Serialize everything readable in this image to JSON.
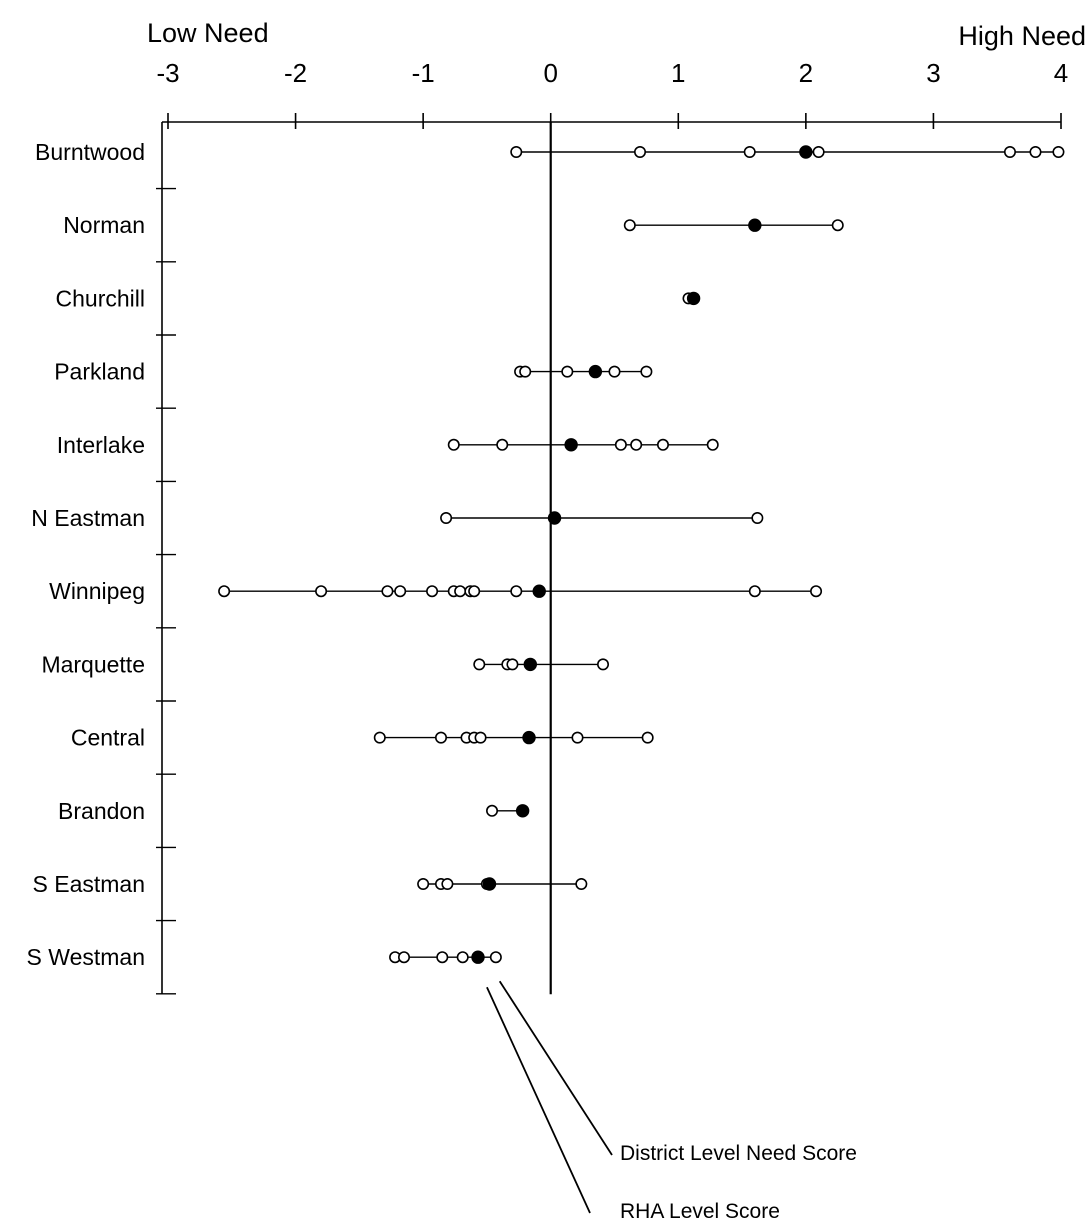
{
  "chart_data": {
    "type": "scatter",
    "x_label_left": "Low Need",
    "x_label_right": "High Need",
    "xlim": [
      -3,
      4
    ],
    "x_ticks": [
      "-3",
      "-2",
      "-1",
      "0",
      "1",
      "2",
      "3",
      "4"
    ],
    "grid": false,
    "regions": [
      {
        "name": "Burntwood",
        "rha_score": 2.0,
        "district_scores": [
          -0.27,
          0.7,
          1.56,
          2.1,
          3.6,
          3.8,
          3.98
        ]
      },
      {
        "name": "Norman",
        "rha_score": 1.6,
        "district_scores": [
          0.62,
          2.25
        ]
      },
      {
        "name": "Churchill",
        "rha_score": 1.12,
        "district_scores": [
          1.08
        ]
      },
      {
        "name": "Parkland",
        "rha_score": 0.35,
        "district_scores": [
          -0.24,
          -0.2,
          0.13,
          0.5,
          0.75
        ]
      },
      {
        "name": "Interlake",
        "rha_score": 0.16,
        "district_scores": [
          -0.76,
          -0.38,
          0.55,
          0.67,
          0.88,
          1.27
        ]
      },
      {
        "name": "N Eastman",
        "rha_score": 0.03,
        "district_scores": [
          -0.82,
          1.62
        ]
      },
      {
        "name": "Winnipeg",
        "rha_score": -0.09,
        "district_scores": [
          -2.56,
          -1.8,
          -1.28,
          -1.18,
          -0.93,
          -0.76,
          -0.71,
          -0.63,
          -0.6,
          -0.27,
          1.6,
          2.08
        ]
      },
      {
        "name": "Marquette",
        "rha_score": -0.16,
        "district_scores": [
          -0.56,
          -0.34,
          -0.3,
          0.41
        ]
      },
      {
        "name": "Central",
        "rha_score": -0.17,
        "district_scores": [
          -1.34,
          -0.86,
          -0.66,
          -0.6,
          -0.55,
          0.21,
          0.76
        ]
      },
      {
        "name": "Brandon",
        "rha_score": -0.22,
        "district_scores": [
          -0.46
        ]
      },
      {
        "name": "S Eastman",
        "rha_score": -0.48,
        "district_scores": [
          -1.0,
          -0.86,
          -0.81,
          -0.5,
          0.24
        ]
      },
      {
        "name": "S Westman",
        "rha_score": -0.57,
        "district_scores": [
          -1.22,
          -1.15,
          -0.85,
          -0.69,
          -0.43
        ]
      }
    ],
    "legend": {
      "district": "District Level Need Score",
      "rha": "RHA Level Score"
    }
  }
}
